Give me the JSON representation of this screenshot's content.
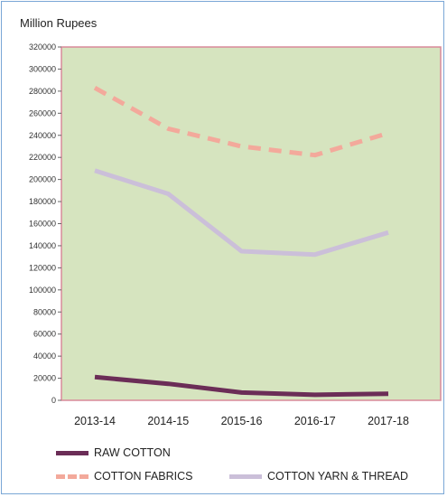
{
  "chart_data": {
    "type": "line",
    "ylabel": "Million Rupees",
    "categories": [
      "2013-14",
      "2014-15",
      "2015-16",
      "2016-17",
      "2017-18"
    ],
    "y_ticks": [
      "0",
      "20000",
      "40000",
      "60000",
      "80000",
      "100000",
      "120000",
      "140000",
      "160000",
      "180000",
      "200000",
      "220000",
      "240000",
      "260000",
      "280000",
      "300000",
      "320000"
    ],
    "ylim": [
      0,
      320000
    ],
    "grid": false,
    "plot_background": "#d6e4bf",
    "plot_border": "#d98a9a",
    "legend_position": "bottom",
    "series": [
      {
        "name": "RAW COTTON",
        "values": [
          21000,
          15000,
          7000,
          5000,
          6000
        ],
        "color": "#6b2d57",
        "style": "solid",
        "width": 5
      },
      {
        "name": "COTTON FABRICS",
        "values": [
          283000,
          246000,
          230000,
          222000,
          242000
        ],
        "color": "#f3a99b",
        "style": "dashed",
        "width": 5
      },
      {
        "name": "COTTON YARN & THREAD",
        "values": [
          208000,
          187000,
          135000,
          132000,
          152000
        ],
        "color": "#cbbfd9",
        "style": "solid",
        "width": 5
      }
    ]
  }
}
